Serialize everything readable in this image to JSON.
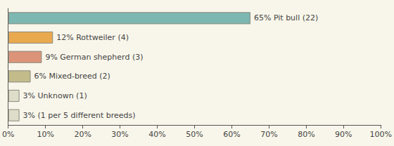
{
  "chart_data": {
    "type": "bar",
    "orientation": "horizontal",
    "values": [
      65,
      12,
      9,
      6,
      3,
      3
    ],
    "value_labels": [
      "65% Pit bull (22)",
      "12% Rottweiler (4)",
      "9% German shepherd (3)",
      "6% Mixed-breed (2)",
      "3% Unknown (1)",
      "3% (1 per 5 different breeds)"
    ],
    "colors": [
      "#7db7b1",
      "#e9a94f",
      "#dc9479",
      "#c3bb8a",
      "#deddc9",
      "#deddc9"
    ],
    "xlim": [
      0,
      100
    ],
    "xticks": [
      {
        "value": 0,
        "label": "0%"
      },
      {
        "value": 10,
        "label": "10%"
      },
      {
        "value": 20,
        "label": "20%"
      },
      {
        "value": 30,
        "label": "30%"
      },
      {
        "value": 40,
        "label": "40%"
      },
      {
        "value": 50,
        "label": "50%"
      },
      {
        "value": 60,
        "label": "60%"
      },
      {
        "value": 70,
        "label": "70%"
      },
      {
        "value": 80,
        "label": "80%"
      },
      {
        "value": 90,
        "label": "90%"
      },
      {
        "value": 100,
        "label": "100%"
      }
    ],
    "grid": false,
    "data_labels": true,
    "tick_labels": "x"
  }
}
